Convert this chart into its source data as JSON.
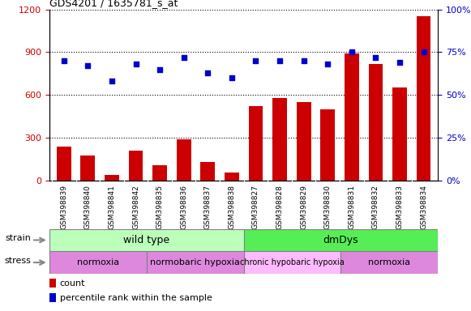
{
  "title": "GDS4201 / 1635781_s_at",
  "samples": [
    "GSM398839",
    "GSM398840",
    "GSM398841",
    "GSM398842",
    "GSM398835",
    "GSM398836",
    "GSM398837",
    "GSM398838",
    "GSM398827",
    "GSM398828",
    "GSM398829",
    "GSM398830",
    "GSM398831",
    "GSM398832",
    "GSM398833",
    "GSM398834"
  ],
  "counts": [
    240,
    175,
    40,
    210,
    110,
    290,
    130,
    55,
    520,
    580,
    550,
    500,
    890,
    820,
    650,
    1150
  ],
  "percentile_ranks": [
    70,
    67,
    58,
    68,
    65,
    72,
    63,
    60,
    70,
    70,
    70,
    68,
    75,
    72,
    69,
    75
  ],
  "ylim_left": [
    0,
    1200
  ],
  "ylim_right": [
    0,
    100
  ],
  "yticks_left": [
    0,
    300,
    600,
    900,
    1200
  ],
  "yticks_right": [
    0,
    25,
    50,
    75,
    100
  ],
  "bar_color": "#cc0000",
  "dot_color": "#0000cc",
  "strain_groups": [
    {
      "label": "wild type",
      "start": 0,
      "end": 8,
      "color": "#bbffbb"
    },
    {
      "label": "dmDys",
      "start": 8,
      "end": 16,
      "color": "#55ee55"
    }
  ],
  "stress_groups": [
    {
      "label": "normoxia",
      "start": 0,
      "end": 4,
      "color": "#dd88dd"
    },
    {
      "label": "normobaric hypoxia",
      "start": 4,
      "end": 8,
      "color": "#dd88dd"
    },
    {
      "label": "chronic hypobaric hypoxia",
      "start": 8,
      "end": 12,
      "color": "#ffbbff"
    },
    {
      "label": "normoxia",
      "start": 12,
      "end": 16,
      "color": "#dd88dd"
    }
  ],
  "xtick_bg": "#dddddd",
  "legend_count_color": "#cc0000",
  "legend_dot_color": "#0000cc"
}
